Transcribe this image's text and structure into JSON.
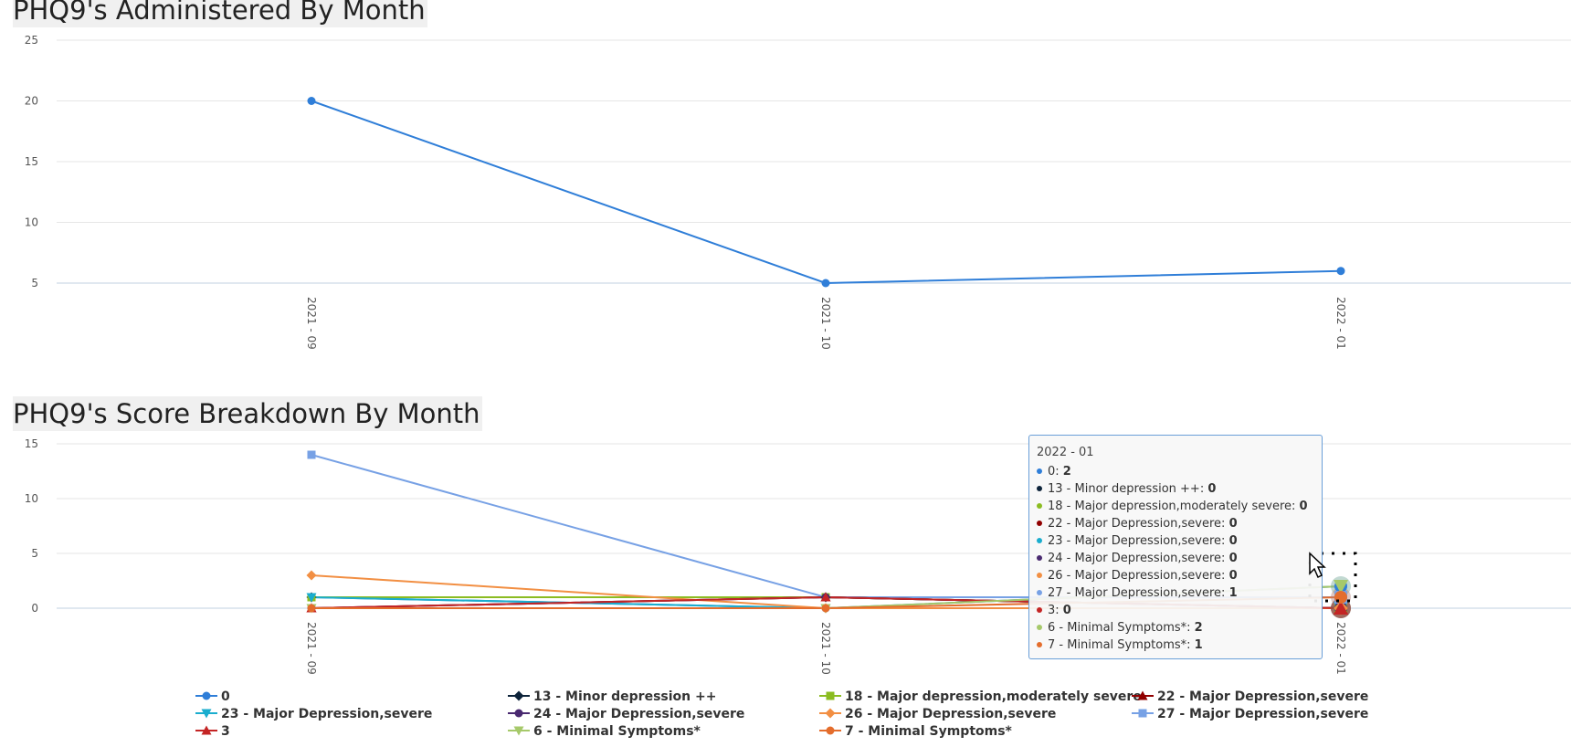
{
  "chart_data": [
    {
      "type": "line",
      "title": "PHQ9's Administered By Month",
      "categories": [
        "2021 - 09",
        "2021 - 10",
        "2022 - 01"
      ],
      "yticks": [
        5,
        10,
        15,
        20,
        25
      ],
      "ylim": [
        5,
        25
      ],
      "grid": true,
      "legend": "none",
      "series": [
        {
          "values": [
            20,
            5,
            6
          ],
          "color": "#2f7ed8",
          "marker": "circle"
        }
      ]
    },
    {
      "type": "line",
      "title": "PHQ9's Score Breakdown By Month",
      "categories": [
        "2021 - 09",
        "2021 - 10",
        "2022 - 01"
      ],
      "yticks": [
        0,
        5,
        10,
        15
      ],
      "ylim": [
        0,
        15
      ],
      "grid": true,
      "legend": "bottom",
      "series": [
        {
          "name": "0",
          "values": [
            1,
            0,
            2
          ],
          "color": "#2f7ed8",
          "marker": "circle"
        },
        {
          "name": "13 - Minor depression ++",
          "values": [
            1,
            1,
            0
          ],
          "color": "#0d233a",
          "marker": "diamond"
        },
        {
          "name": "18 - Major depression,moderately severe",
          "values": [
            1,
            1,
            0
          ],
          "color": "#8bbc21",
          "marker": "square"
        },
        {
          "name": "22 - Major Depression,severe",
          "values": [
            0,
            1,
            0
          ],
          "color": "#910000",
          "marker": "triangle"
        },
        {
          "name": "23 - Major Depression,severe",
          "values": [
            1,
            0,
            0
          ],
          "color": "#1aadce",
          "marker": "triangle-down"
        },
        {
          "name": "24 - Major Depression,severe",
          "values": [
            0,
            1,
            0
          ],
          "color": "#492970",
          "marker": "circle"
        },
        {
          "name": "26 - Major Depression,severe",
          "values": [
            3,
            0,
            0
          ],
          "color": "#f28f43",
          "marker": "diamond"
        },
        {
          "name": "27 - Major Depression,severe",
          "values": [
            14,
            1,
            1
          ],
          "color": "#77a1e5",
          "marker": "square"
        },
        {
          "name": "3",
          "values": [
            0,
            1,
            0
          ],
          "color": "#c42525",
          "marker": "triangle"
        },
        {
          "name": "6 - Minimal Symptoms*",
          "values": [
            0,
            0,
            2
          ],
          "color": "#a6c96a",
          "marker": "triangle-down"
        },
        {
          "name": "7 - Minimal Symptoms*",
          "values": [
            0,
            0,
            1
          ],
          "color": "#e46d2c",
          "marker": "circle"
        }
      ],
      "tooltip": {
        "header": "2022 - 01",
        "rows": [
          {
            "label": "0",
            "value": "2",
            "color": "#2f7ed8"
          },
          {
            "label": "13 - Minor depression ++",
            "value": "0",
            "color": "#0d233a"
          },
          {
            "label": "18 - Major depression,moderately severe",
            "value": "0",
            "color": "#8bbc21"
          },
          {
            "label": "22 - Major Depression,severe",
            "value": "0",
            "color": "#910000"
          },
          {
            "label": "23 - Major Depression,severe",
            "value": "0",
            "color": "#1aadce"
          },
          {
            "label": "24 - Major Depression,severe",
            "value": "0",
            "color": "#492970"
          },
          {
            "label": "26 - Major Depression,severe",
            "value": "0",
            "color": "#f28f43"
          },
          {
            "label": "27 - Major Depression,severe",
            "value": "1",
            "color": "#77a1e5"
          },
          {
            "label": "3",
            "value": "0",
            "color": "#c42525"
          },
          {
            "label": "6 - Minimal Symptoms*",
            "value": "2",
            "color": "#a6c96a"
          },
          {
            "label": "7 - Minimal Symptoms*",
            "value": "1",
            "color": "#e46d2c"
          }
        ]
      }
    }
  ]
}
